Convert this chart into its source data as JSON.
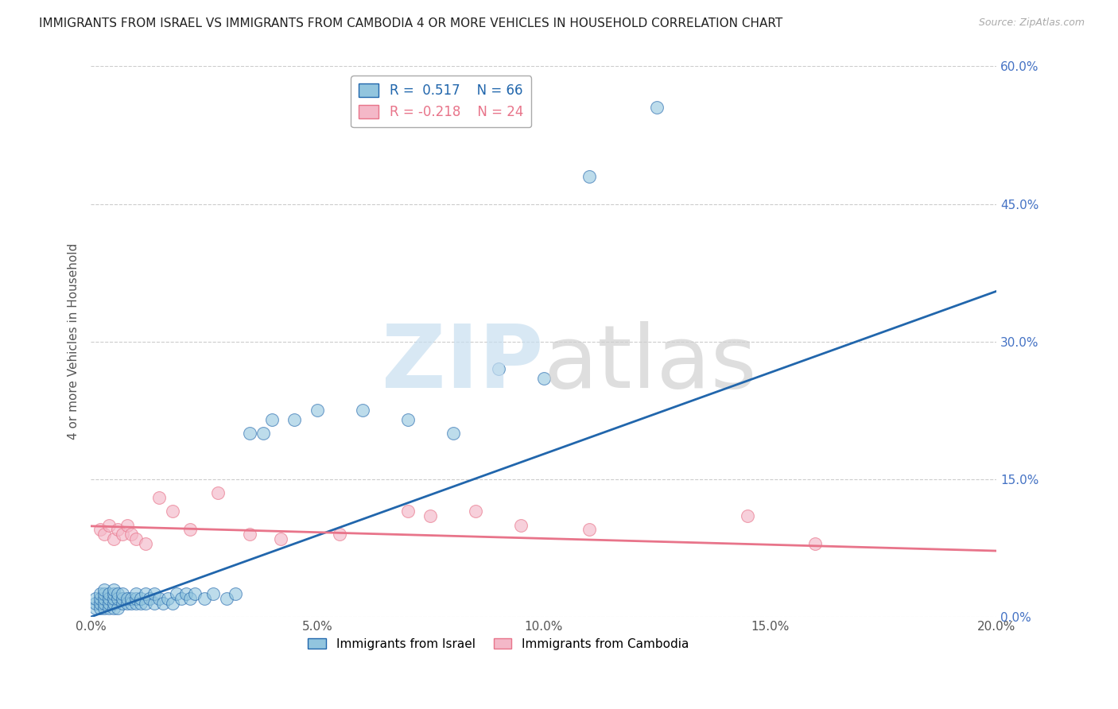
{
  "title": "IMMIGRANTS FROM ISRAEL VS IMMIGRANTS FROM CAMBODIA 4 OR MORE VEHICLES IN HOUSEHOLD CORRELATION CHART",
  "source": "Source: ZipAtlas.com",
  "ylabel": "4 or more Vehicles in Household",
  "xlabel_legend1": "Immigrants from Israel",
  "xlabel_legend2": "Immigrants from Cambodia",
  "r_israel": 0.517,
  "n_israel": 66,
  "r_cambodia": -0.218,
  "n_cambodia": 24,
  "xlim": [
    0.0,
    0.2
  ],
  "ylim": [
    0.0,
    0.6
  ],
  "xticks": [
    0.0,
    0.05,
    0.1,
    0.15,
    0.2
  ],
  "yticks_right": [
    0.0,
    0.15,
    0.3,
    0.45,
    0.6
  ],
  "color_israel": "#92c5de",
  "color_cambodia": "#f4b8c8",
  "line_color_israel": "#2166ac",
  "line_color_cambodia": "#e8748a",
  "israel_x": [
    0.001,
    0.001,
    0.001,
    0.002,
    0.002,
    0.002,
    0.002,
    0.003,
    0.003,
    0.003,
    0.003,
    0.003,
    0.004,
    0.004,
    0.004,
    0.004,
    0.005,
    0.005,
    0.005,
    0.005,
    0.005,
    0.006,
    0.006,
    0.006,
    0.007,
    0.007,
    0.007,
    0.008,
    0.008,
    0.009,
    0.009,
    0.01,
    0.01,
    0.01,
    0.011,
    0.011,
    0.012,
    0.012,
    0.013,
    0.014,
    0.014,
    0.015,
    0.016,
    0.017,
    0.018,
    0.019,
    0.02,
    0.021,
    0.022,
    0.023,
    0.025,
    0.027,
    0.03,
    0.032,
    0.035,
    0.038,
    0.04,
    0.045,
    0.05,
    0.06,
    0.07,
    0.08,
    0.09,
    0.1,
    0.11,
    0.125
  ],
  "israel_y": [
    0.01,
    0.015,
    0.02,
    0.01,
    0.015,
    0.02,
    0.025,
    0.01,
    0.015,
    0.02,
    0.025,
    0.03,
    0.01,
    0.015,
    0.02,
    0.025,
    0.01,
    0.015,
    0.02,
    0.025,
    0.03,
    0.01,
    0.02,
    0.025,
    0.015,
    0.02,
    0.025,
    0.015,
    0.02,
    0.015,
    0.02,
    0.015,
    0.02,
    0.025,
    0.015,
    0.02,
    0.015,
    0.025,
    0.02,
    0.015,
    0.025,
    0.02,
    0.015,
    0.02,
    0.015,
    0.025,
    0.02,
    0.025,
    0.02,
    0.025,
    0.02,
    0.025,
    0.02,
    0.025,
    0.2,
    0.2,
    0.215,
    0.215,
    0.225,
    0.225,
    0.215,
    0.2,
    0.27,
    0.26,
    0.48,
    0.555
  ],
  "cambodia_x": [
    0.002,
    0.003,
    0.004,
    0.005,
    0.006,
    0.007,
    0.008,
    0.009,
    0.01,
    0.012,
    0.015,
    0.018,
    0.022,
    0.028,
    0.035,
    0.042,
    0.055,
    0.07,
    0.075,
    0.085,
    0.095,
    0.11,
    0.145,
    0.16
  ],
  "cambodia_y": [
    0.095,
    0.09,
    0.1,
    0.085,
    0.095,
    0.09,
    0.1,
    0.09,
    0.085,
    0.08,
    0.13,
    0.115,
    0.095,
    0.135,
    0.09,
    0.085,
    0.09,
    0.115,
    0.11,
    0.115,
    0.1,
    0.095,
    0.11,
    0.08
  ],
  "background_color": "#ffffff",
  "grid_color": "#cccccc",
  "line_israel_x0": 0.0,
  "line_israel_y0": 0.0,
  "line_israel_x1": 0.2,
  "line_israel_y1": 0.355,
  "line_cambodia_x0": 0.0,
  "line_cambodia_y0": 0.099,
  "line_cambodia_x1": 0.2,
  "line_cambodia_y1": 0.072
}
